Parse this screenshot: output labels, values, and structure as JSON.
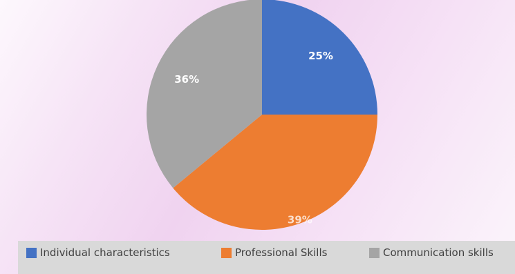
{
  "chart_data": {
    "type": "pie",
    "categories": [
      "Individual characteristics",
      "Professional Skills",
      "Communication skills"
    ],
    "values": [
      25,
      39,
      36
    ],
    "data_labels": [
      "25%",
      "39%",
      "36%"
    ],
    "colors": [
      "#4472c4",
      "#ed7d31",
      "#a5a5a5"
    ],
    "label_color": "#ffffff",
    "legend_position": "bottom",
    "title": ""
  }
}
